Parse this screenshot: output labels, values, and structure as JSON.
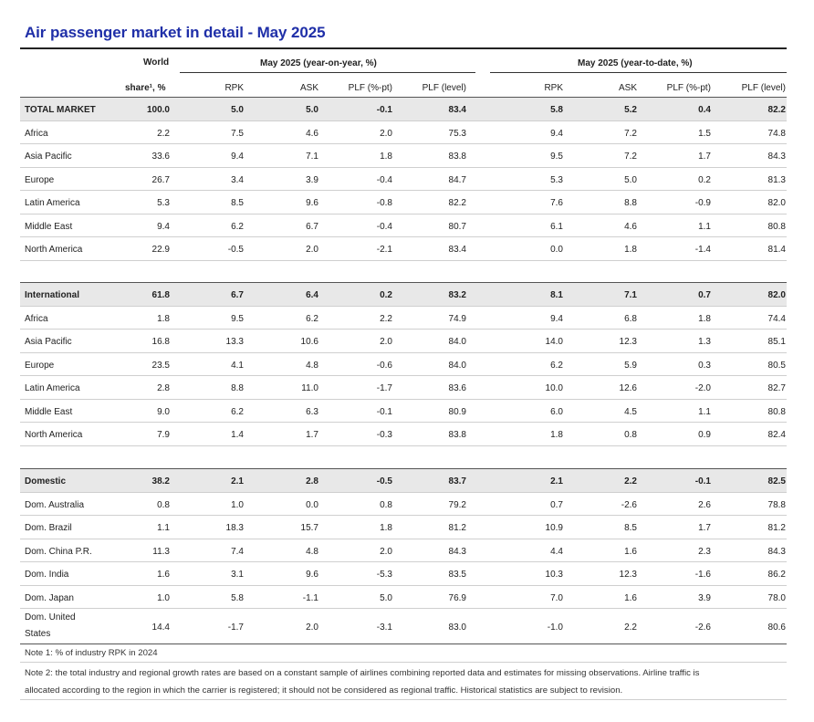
{
  "title": "Air passenger market in detail - May 2025",
  "headers": {
    "world_line1": "World",
    "world_line2": "share¹, %",
    "group_yoy": "May 2025 (year-on-year, %)",
    "group_ytd": "May 2025 (year-to-date, %)",
    "columns": [
      "RPK",
      "ASK",
      "PLF (%-pt)",
      "PLF (level)",
      "RPK",
      "ASK",
      "PLF (%-pt)",
      "PLF (level)"
    ]
  },
  "sections": [
    {
      "total": [
        "TOTAL MARKET",
        "100.0",
        "5.0",
        "5.0",
        "-0.1",
        "83.4",
        "5.8",
        "5.2",
        "0.4",
        "82.2"
      ],
      "rows": [
        [
          "Africa",
          "2.2",
          "7.5",
          "4.6",
          "2.0",
          "75.3",
          "9.4",
          "7.2",
          "1.5",
          "74.8"
        ],
        [
          "Asia Pacific",
          "33.6",
          "9.4",
          "7.1",
          "1.8",
          "83.8",
          "9.5",
          "7.2",
          "1.7",
          "84.3"
        ],
        [
          "Europe",
          "26.7",
          "3.4",
          "3.9",
          "-0.4",
          "84.7",
          "5.3",
          "5.0",
          "0.2",
          "81.3"
        ],
        [
          "Latin America",
          "5.3",
          "8.5",
          "9.6",
          "-0.8",
          "82.2",
          "7.6",
          "8.8",
          "-0.9",
          "82.0"
        ],
        [
          "Middle East",
          "9.4",
          "6.2",
          "6.7",
          "-0.4",
          "80.7",
          "6.1",
          "4.6",
          "1.1",
          "80.8"
        ],
        [
          "North America",
          "22.9",
          "-0.5",
          "2.0",
          "-2.1",
          "83.4",
          "0.0",
          "1.8",
          "-1.4",
          "81.4"
        ]
      ]
    },
    {
      "total": [
        "International",
        "61.8",
        "6.7",
        "6.4",
        "0.2",
        "83.2",
        "8.1",
        "7.1",
        "0.7",
        "82.0"
      ],
      "rows": [
        [
          "Africa",
          "1.8",
          "9.5",
          "6.2",
          "2.2",
          "74.9",
          "9.4",
          "6.8",
          "1.8",
          "74.4"
        ],
        [
          "Asia Pacific",
          "16.8",
          "13.3",
          "10.6",
          "2.0",
          "84.0",
          "14.0",
          "12.3",
          "1.3",
          "85.1"
        ],
        [
          "Europe",
          "23.5",
          "4.1",
          "4.8",
          "-0.6",
          "84.0",
          "6.2",
          "5.9",
          "0.3",
          "80.5"
        ],
        [
          "Latin America",
          "2.8",
          "8.8",
          "11.0",
          "-1.7",
          "83.6",
          "10.0",
          "12.6",
          "-2.0",
          "82.7"
        ],
        [
          "Middle East",
          "9.0",
          "6.2",
          "6.3",
          "-0.1",
          "80.9",
          "6.0",
          "4.5",
          "1.1",
          "80.8"
        ],
        [
          "North America",
          "7.9",
          "1.4",
          "1.7",
          "-0.3",
          "83.8",
          "1.8",
          "0.8",
          "0.9",
          "82.4"
        ]
      ]
    },
    {
      "total": [
        "Domestic",
        "38.2",
        "2.1",
        "2.8",
        "-0.5",
        "83.7",
        "2.1",
        "2.2",
        "-0.1",
        "82.5"
      ],
      "rows": [
        [
          "Dom. Australia",
          "0.8",
          "1.0",
          "0.0",
          "0.8",
          "79.2",
          "0.7",
          "-2.6",
          "2.6",
          "78.8"
        ],
        [
          "Dom. Brazil",
          "1.1",
          "18.3",
          "15.7",
          "1.8",
          "81.2",
          "10.9",
          "8.5",
          "1.7",
          "81.2"
        ],
        [
          "Dom. China P.R.",
          "11.3",
          "7.4",
          "4.8",
          "2.0",
          "84.3",
          "4.4",
          "1.6",
          "2.3",
          "84.3"
        ],
        [
          "Dom. India",
          "1.6",
          "3.1",
          "9.6",
          "-5.3",
          "83.5",
          "10.3",
          "12.3",
          "-1.6",
          "86.2"
        ],
        [
          "Dom. Japan",
          "1.0",
          "5.8",
          "-1.1",
          "5.0",
          "76.9",
          "7.0",
          "1.6",
          "3.9",
          "78.0"
        ]
      ]
    }
  ],
  "last_row": {
    "label_line1": "Dom. United",
    "label_line2": "States",
    "values": [
      "14.4",
      "-1.7",
      "2.0",
      "-3.1",
      "83.0",
      "-1.0",
      "2.2",
      "-2.6",
      "80.6"
    ]
  },
  "notes": [
    "Note 1: % of industry RPK in 2024",
    "Note 2: the total industry and regional growth rates are based on a constant sample of airlines combining reported data and estimates for missing observations. Airline traffic is",
    "allocated according to the region in which the carrier is registered; it should not be considered as regional traffic. Historical statistics are subject to revision."
  ]
}
